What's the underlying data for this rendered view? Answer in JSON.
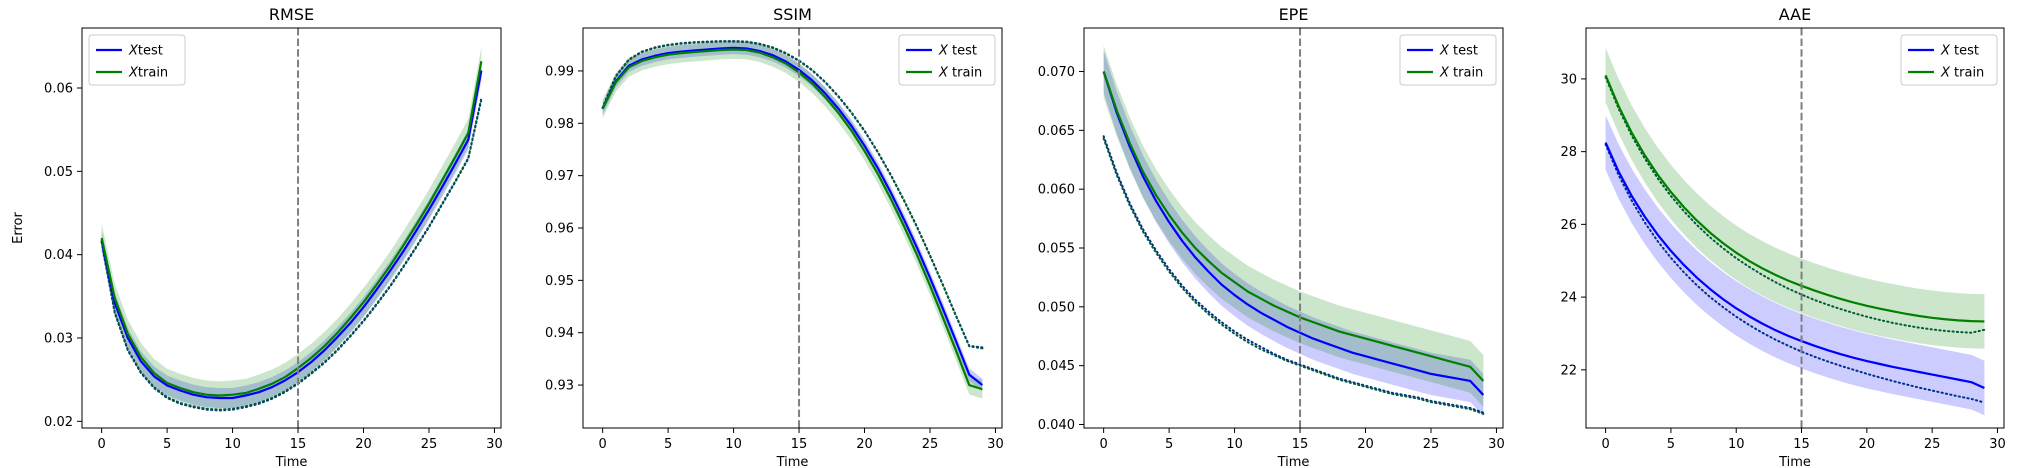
{
  "chart_data": [
    {
      "type": "line",
      "title": "RMSE",
      "xlabel": "Time",
      "ylabel": "Error",
      "xlim": [
        -1.5,
        30.5
      ],
      "ylim": [
        0.0192,
        0.0672
      ],
      "xticks": [
        0,
        5,
        10,
        15,
        20,
        25,
        30
      ],
      "yticks": [
        0.02,
        0.03,
        0.04,
        0.05,
        0.06
      ],
      "ytick_decimals": 2,
      "vline": 15,
      "legend_position": "top-left",
      "x": [
        0,
        1,
        2,
        3,
        4,
        5,
        6,
        7,
        8,
        9,
        10,
        11,
        12,
        13,
        14,
        15,
        16,
        17,
        18,
        19,
        20,
        21,
        22,
        23,
        24,
        25,
        26,
        27,
        28,
        29
      ],
      "series": [
        {
          "name": "$X$test",
          "color": "#0000ff",
          "values": [
            0.0417,
            0.0342,
            0.03,
            0.0272,
            0.0254,
            0.0243,
            0.0237,
            0.0232,
            0.0229,
            0.0228,
            0.0228,
            0.0231,
            0.0235,
            0.0241,
            0.0249,
            0.0259,
            0.0271,
            0.0285,
            0.0301,
            0.0318,
            0.0337,
            0.0358,
            0.038,
            0.0403,
            0.0428,
            0.0454,
            0.0481,
            0.0509,
            0.0538,
            0.0621
          ],
          "band": 0.0012
        },
        {
          "name": "$X$train",
          "color": "#008000",
          "values": [
            0.042,
            0.0348,
            0.0305,
            0.0277,
            0.0258,
            0.0246,
            0.024,
            0.0235,
            0.0232,
            0.0231,
            0.0232,
            0.0234,
            0.0239,
            0.0245,
            0.0253,
            0.0264,
            0.0276,
            0.029,
            0.0306,
            0.0324,
            0.0343,
            0.0364,
            0.0386,
            0.041,
            0.0435,
            0.0461,
            0.0489,
            0.0517,
            0.0546,
            0.0632
          ],
          "band": 0.0017
        },
        {
          "name": "",
          "color": "#0000ff",
          "dash": "dotted",
          "values": [
            0.0415,
            0.033,
            0.0285,
            0.0258,
            0.024,
            0.0228,
            0.0221,
            0.0217,
            0.0214,
            0.0213,
            0.0214,
            0.0217,
            0.0221,
            0.0227,
            0.0235,
            0.0245,
            0.0257,
            0.027,
            0.0285,
            0.0302,
            0.032,
            0.034,
            0.0361,
            0.0384,
            0.0408,
            0.0433,
            0.046,
            0.0487,
            0.0515,
            0.0586
          ]
        },
        {
          "name": "",
          "color": "#008000",
          "dash": "dotted",
          "values": [
            0.0416,
            0.0331,
            0.0286,
            0.0259,
            0.0241,
            0.0229,
            0.0222,
            0.0218,
            0.0215,
            0.0214,
            0.0215,
            0.0218,
            0.0222,
            0.0228,
            0.0236,
            0.0246,
            0.0258,
            0.0271,
            0.0286,
            0.0303,
            0.0321,
            0.0341,
            0.0362,
            0.0385,
            0.0409,
            0.0434,
            0.0461,
            0.0488,
            0.0516,
            0.0588
          ]
        }
      ]
    },
    {
      "type": "line",
      "title": "SSIM",
      "xlabel": "Time",
      "ylabel": "",
      "xlim": [
        -1.5,
        30.5
      ],
      "ylim": [
        0.9218,
        0.9982
      ],
      "xticks": [
        0,
        5,
        10,
        15,
        20,
        25,
        30
      ],
      "yticks": [
        0.93,
        0.94,
        0.95,
        0.96,
        0.97,
        0.98,
        0.99
      ],
      "ytick_decimals": 2,
      "vline": 15,
      "legend_position": "top-right",
      "x": [
        0,
        1,
        2,
        3,
        4,
        5,
        6,
        7,
        8,
        9,
        10,
        11,
        12,
        13,
        14,
        15,
        16,
        17,
        18,
        19,
        20,
        21,
        22,
        23,
        24,
        25,
        26,
        27,
        28,
        29
      ],
      "series": [
        {
          "name": "$X$ test",
          "color": "#0000ff",
          "values": [
            0.9828,
            0.988,
            0.991,
            0.9922,
            0.9929,
            0.9934,
            0.9937,
            0.9939,
            0.9941,
            0.9943,
            0.9944,
            0.9943,
            0.9938,
            0.993,
            0.9918,
            0.9902,
            0.9882,
            0.9857,
            0.9828,
            0.9795,
            0.9757,
            0.9715,
            0.9668,
            0.9617,
            0.9563,
            0.9505,
            0.9445,
            0.9383,
            0.932,
            0.93
          ],
          "band": 0.0012
        },
        {
          "name": "$X$ train",
          "color": "#008000",
          "values": [
            0.9828,
            0.9878,
            0.9907,
            0.9919,
            0.9926,
            0.9931,
            0.9934,
            0.9936,
            0.9938,
            0.994,
            0.9941,
            0.994,
            0.9935,
            0.9926,
            0.9914,
            0.9897,
            0.9876,
            0.985,
            0.982,
            0.9786,
            0.9747,
            0.9704,
            0.9656,
            0.9604,
            0.9549,
            0.949,
            0.9428,
            0.9365,
            0.93,
            0.9292
          ],
          "band": 0.0018
        },
        {
          "name": "",
          "color": "#0000ff",
          "dash": "dotted",
          "values": [
            0.983,
            0.989,
            0.9922,
            0.9937,
            0.9945,
            0.995,
            0.9953,
            0.9955,
            0.9956,
            0.9957,
            0.9957,
            0.9956,
            0.9952,
            0.9945,
            0.9934,
            0.992,
            0.9902,
            0.9879,
            0.9852,
            0.9821,
            0.9786,
            0.9746,
            0.9702,
            0.9654,
            0.9603,
            0.9548,
            0.9491,
            0.9432,
            0.9375,
            0.9372
          ]
        },
        {
          "name": "",
          "color": "#008000",
          "dash": "dotted",
          "values": [
            0.9829,
            0.9889,
            0.9921,
            0.9936,
            0.9944,
            0.9949,
            0.9952,
            0.9954,
            0.9955,
            0.9956,
            0.9956,
            0.9955,
            0.9951,
            0.9944,
            0.9933,
            0.9919,
            0.9901,
            0.9878,
            0.9851,
            0.982,
            0.9785,
            0.9745,
            0.9701,
            0.9653,
            0.9602,
            0.9547,
            0.949,
            0.9431,
            0.9374,
            0.937
          ]
        }
      ]
    },
    {
      "type": "line",
      "title": "EPE",
      "xlabel": "Time",
      "ylabel": "",
      "xlim": [
        -1.5,
        30.5
      ],
      "ylim": [
        0.0397,
        0.0737
      ],
      "xticks": [
        0,
        5,
        10,
        15,
        20,
        25,
        30
      ],
      "yticks": [
        0.04,
        0.045,
        0.05,
        0.055,
        0.06,
        0.065,
        0.07
      ],
      "ytick_decimals": 3,
      "vline": 15,
      "legend_position": "top-right",
      "x": [
        0,
        1,
        2,
        3,
        4,
        5,
        6,
        7,
        8,
        9,
        10,
        11,
        12,
        13,
        14,
        15,
        16,
        17,
        18,
        19,
        20,
        21,
        22,
        23,
        24,
        25,
        26,
        27,
        28,
        29
      ],
      "series": [
        {
          "name": "$X$ test",
          "color": "#0000ff",
          "values": [
            0.07,
            0.0665,
            0.0636,
            0.0611,
            0.059,
            0.0572,
            0.0556,
            0.0542,
            0.053,
            0.0519,
            0.051,
            0.0502,
            0.0495,
            0.0489,
            0.0483,
            0.0478,
            0.0473,
            0.0469,
            0.0465,
            0.0461,
            0.0458,
            0.0455,
            0.0452,
            0.0449,
            0.0446,
            0.0443,
            0.0441,
            0.0439,
            0.0437,
            0.0425
          ],
          "band": 0.0018
        },
        {
          "name": "$X$ train",
          "color": "#008000",
          "values": [
            0.07,
            0.0667,
            0.0639,
            0.0615,
            0.0595,
            0.0578,
            0.0563,
            0.055,
            0.0539,
            0.0529,
            0.0521,
            0.0513,
            0.0507,
            0.0501,
            0.0496,
            0.0491,
            0.0487,
            0.0483,
            0.0479,
            0.0476,
            0.0473,
            0.047,
            0.0467,
            0.0464,
            0.0461,
            0.0458,
            0.0455,
            0.0452,
            0.0449,
            0.0437
          ],
          "band": 0.0022
        },
        {
          "name": "",
          "color": "#0000ff",
          "dash": "dotted",
          "values": [
            0.0645,
            0.0614,
            0.0588,
            0.0566,
            0.0548,
            0.0532,
            0.0518,
            0.0506,
            0.0496,
            0.0487,
            0.0479,
            0.0472,
            0.0466,
            0.046,
            0.0455,
            0.0451,
            0.0447,
            0.0443,
            0.0439,
            0.0436,
            0.0433,
            0.043,
            0.0427,
            0.0425,
            0.0423,
            0.042,
            0.0418,
            0.0416,
            0.0414,
            0.041
          ]
        },
        {
          "name": "",
          "color": "#008000",
          "dash": "dotted",
          "values": [
            0.0643,
            0.0612,
            0.0586,
            0.0564,
            0.0546,
            0.053,
            0.0516,
            0.0504,
            0.0494,
            0.0485,
            0.0477,
            0.047,
            0.0464,
            0.0459,
            0.0454,
            0.045,
            0.0446,
            0.0442,
            0.0438,
            0.0435,
            0.0432,
            0.0429,
            0.0426,
            0.0424,
            0.0422,
            0.0419,
            0.0417,
            0.0415,
            0.0413,
            0.0409
          ]
        }
      ]
    },
    {
      "type": "line",
      "title": "AAE",
      "xlabel": "Time",
      "ylabel": "",
      "xlim": [
        -1.5,
        30.5
      ],
      "ylim": [
        20.4,
        31.4
      ],
      "xticks": [
        0,
        5,
        10,
        15,
        20,
        25,
        30
      ],
      "yticks": [
        22,
        24,
        26,
        28,
        30
      ],
      "ytick_decimals": 0,
      "vline": 15,
      "legend_position": "top-right",
      "x": [
        0,
        1,
        2,
        3,
        4,
        5,
        6,
        7,
        8,
        9,
        10,
        11,
        12,
        13,
        14,
        15,
        16,
        17,
        18,
        19,
        20,
        21,
        22,
        23,
        24,
        25,
        26,
        27,
        28,
        29
      ],
      "series": [
        {
          "name": "$X$ test",
          "color": "#0000ff",
          "values": [
            28.25,
            27.45,
            26.78,
            26.21,
            25.71,
            25.27,
            24.88,
            24.53,
            24.22,
            23.94,
            23.69,
            23.47,
            23.27,
            23.09,
            22.93,
            22.79,
            22.66,
            22.54,
            22.43,
            22.33,
            22.24,
            22.16,
            22.08,
            22.01,
            21.94,
            21.87,
            21.8,
            21.73,
            21.66,
            21.5
          ],
          "band": 0.75
        },
        {
          "name": "$X$ train",
          "color": "#008000",
          "values": [
            30.1,
            29.25,
            28.52,
            27.9,
            27.36,
            26.89,
            26.47,
            26.1,
            25.77,
            25.48,
            25.22,
            24.99,
            24.79,
            24.61,
            24.45,
            24.31,
            24.18,
            24.06,
            23.95,
            23.85,
            23.76,
            23.68,
            23.61,
            23.54,
            23.48,
            23.43,
            23.39,
            23.36,
            23.34,
            23.33
          ],
          "band": 0.75
        },
        {
          "name": "",
          "color": "#0000ff",
          "dash": "dotted",
          "values": [
            28.2,
            27.35,
            26.65,
            26.05,
            25.53,
            25.08,
            24.68,
            24.32,
            24.0,
            23.72,
            23.46,
            23.23,
            23.02,
            22.83,
            22.66,
            22.5,
            22.36,
            22.23,
            22.11,
            22.0,
            21.89,
            21.79,
            21.69,
            21.6,
            21.51,
            21.43,
            21.35,
            21.27,
            21.2,
            21.1
          ]
        },
        {
          "name": "",
          "color": "#008000",
          "dash": "dotted",
          "values": [
            30.05,
            29.18,
            28.44,
            27.81,
            27.26,
            26.78,
            26.36,
            25.98,
            25.64,
            25.34,
            25.07,
            24.83,
            24.61,
            24.41,
            24.23,
            24.07,
            23.92,
            23.79,
            23.67,
            23.56,
            23.46,
            23.37,
            23.29,
            23.22,
            23.16,
            23.11,
            23.07,
            23.04,
            23.02,
            23.1
          ]
        }
      ]
    }
  ]
}
